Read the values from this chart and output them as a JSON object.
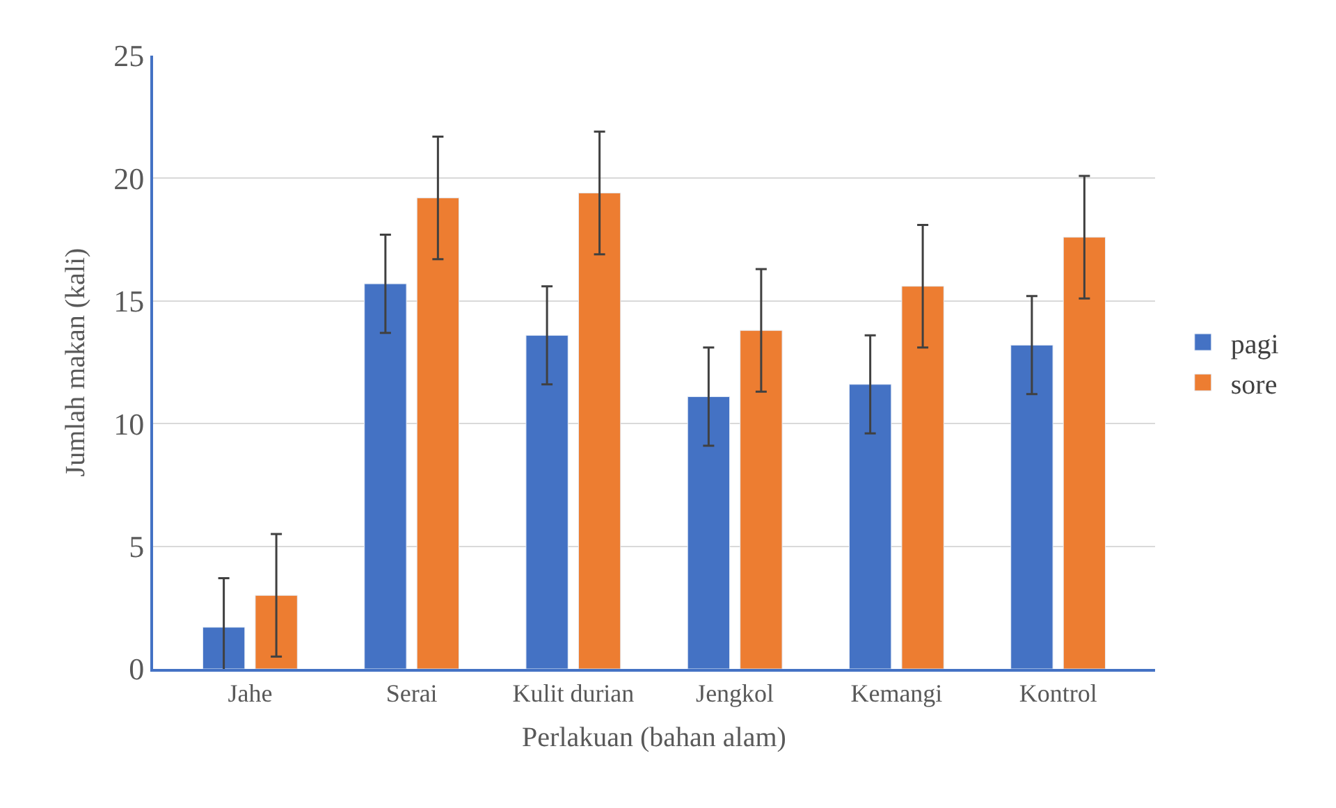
{
  "chart_data": {
    "type": "bar",
    "xlabel": "Perlakuan (bahan alam)",
    "ylabel": "Jumlah makan (kali)",
    "categories": [
      "Jahe",
      "Serai",
      "Kulit durian",
      "Jengkol",
      "Kemangi",
      "Kontrol"
    ],
    "series": [
      {
        "name": "pagi",
        "color": "#4472c4",
        "values": [
          1.7,
          15.7,
          13.6,
          11.1,
          11.6,
          13.2
        ],
        "errors": [
          2.0,
          2.0,
          2.0,
          2.0,
          2.0,
          2.0
        ]
      },
      {
        "name": "sore",
        "color": "#ed7d31",
        "values": [
          3.0,
          19.2,
          19.4,
          13.8,
          15.6,
          17.6
        ],
        "errors": [
          2.5,
          2.5,
          2.5,
          2.5,
          2.5,
          2.5
        ]
      }
    ],
    "ylim": [
      0,
      25
    ],
    "yticks": [
      0,
      5,
      10,
      15,
      20,
      25
    ],
    "grid": "y",
    "legend": "right"
  }
}
